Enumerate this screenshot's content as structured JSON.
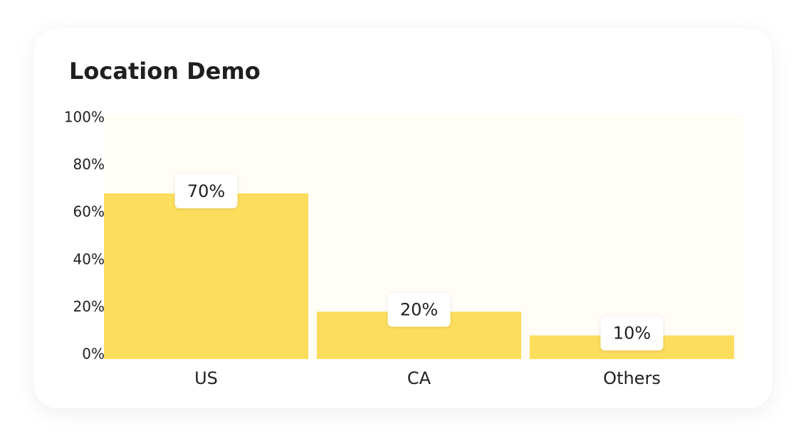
{
  "chart_data": {
    "type": "bar",
    "title": "Location Demo",
    "categories": [
      "US",
      "CA",
      "Others"
    ],
    "values": [
      70,
      20,
      10
    ],
    "value_labels": [
      "70%",
      "20%",
      "10%"
    ],
    "color": "#fddd5c",
    "ylim": [
      0,
      100
    ],
    "yticks": [
      {
        "value": 0,
        "label": "0%"
      },
      {
        "value": 20,
        "label": "20%"
      },
      {
        "value": 40,
        "label": "40%"
      },
      {
        "value": 60,
        "label": "60%"
      },
      {
        "value": 80,
        "label": "80%"
      },
      {
        "value": 100,
        "label": "100%"
      }
    ]
  }
}
